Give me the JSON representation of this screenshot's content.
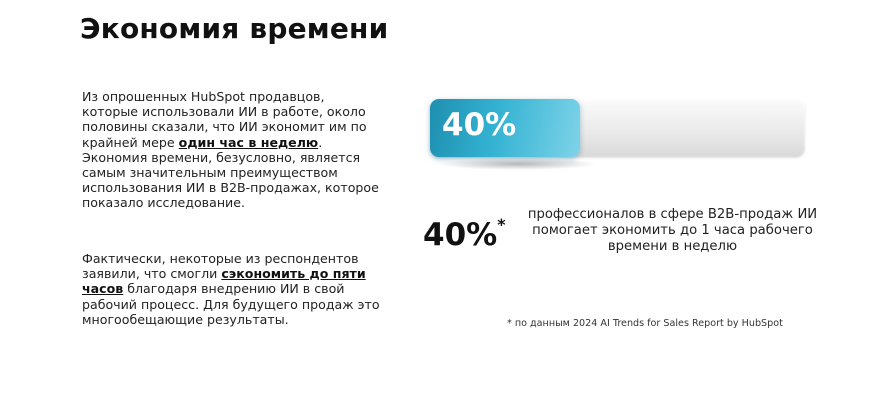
{
  "title": "Экономия времени",
  "paragraph1": {
    "before": "Из опрошенных HubSpot продавцов, которые использовали ИИ в работе, около половины сказали, что ИИ экономит им по крайней мере ",
    "highlight": "один час в неделю",
    "after": ". Экономия времени, безусловно, является самым значительным преимуществом  использования ИИ в B2B-продажах, которое показало исследование."
  },
  "paragraph2": {
    "before": "Фактически, некоторые из респондентов заявили, что смогли ",
    "highlight": "сэкономить до пяти часов",
    "after": " благодаря внедрению ИИ в свой рабочий процесс. Для будущего продаж это многообещающие результаты."
  },
  "progress": {
    "label": "40%",
    "value": 0.4,
    "fill_colors": [
      "#1e8fb0",
      "#7ed3e8"
    ]
  },
  "stat": {
    "value": "40%",
    "marker": "*",
    "description": "профессионалов в сфере B2B-продаж ИИ помогает экономить до 1 часа рабочего времени в неделю"
  },
  "footnote": "* по данным 2024 AI Trends for Sales Report by HubSpot"
}
